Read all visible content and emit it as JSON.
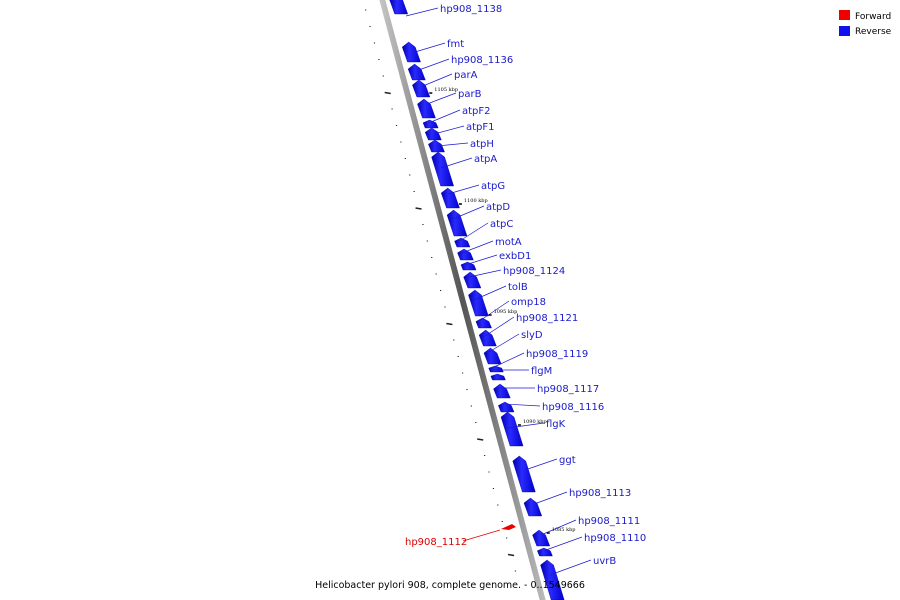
{
  "caption": "Helicobacter pylori 908, complete genome. - 0..1549666",
  "legend": [
    {
      "label": "Forward",
      "color": "#ee0000"
    },
    {
      "label": "Reverse",
      "color": "#1111ee"
    }
  ],
  "scale_labels": [
    "1105 kbp",
    "1100 kbp",
    "1095 kbp",
    "1090 kbp",
    "1085 kbp"
  ],
  "genes": [
    {
      "name": "hp908_1138",
      "strand": "reverse"
    },
    {
      "name": "fmt",
      "strand": "reverse"
    },
    {
      "name": "hp908_1136",
      "strand": "reverse"
    },
    {
      "name": "parA",
      "strand": "reverse"
    },
    {
      "name": "parB",
      "strand": "reverse"
    },
    {
      "name": "atpF2",
      "strand": "reverse"
    },
    {
      "name": "atpF1",
      "strand": "reverse"
    },
    {
      "name": "atpH",
      "strand": "reverse"
    },
    {
      "name": "atpA",
      "strand": "reverse"
    },
    {
      "name": "atpG",
      "strand": "reverse"
    },
    {
      "name": "atpD",
      "strand": "reverse"
    },
    {
      "name": "atpC",
      "strand": "reverse"
    },
    {
      "name": "motA",
      "strand": "reverse"
    },
    {
      "name": "exbD1",
      "strand": "reverse"
    },
    {
      "name": "hp908_1124",
      "strand": "reverse"
    },
    {
      "name": "tolB",
      "strand": "reverse"
    },
    {
      "name": "omp18",
      "strand": "reverse"
    },
    {
      "name": "hp908_1121",
      "strand": "reverse"
    },
    {
      "name": "slyD",
      "strand": "reverse"
    },
    {
      "name": "hp908_1119",
      "strand": "reverse"
    },
    {
      "name": "flgM",
      "strand": "reverse"
    },
    {
      "name": "hp908_1117",
      "strand": "reverse"
    },
    {
      "name": "hp908_1116",
      "strand": "reverse"
    },
    {
      "name": "flgK",
      "strand": "reverse"
    },
    {
      "name": "ggt",
      "strand": "reverse"
    },
    {
      "name": "hp908_1113",
      "strand": "reverse"
    },
    {
      "name": "hp908_1111",
      "strand": "reverse"
    },
    {
      "name": "hp908_1110",
      "strand": "reverse"
    },
    {
      "name": "uvrB",
      "strand": "reverse"
    },
    {
      "name": "hp908_1112",
      "strand": "forward"
    }
  ]
}
